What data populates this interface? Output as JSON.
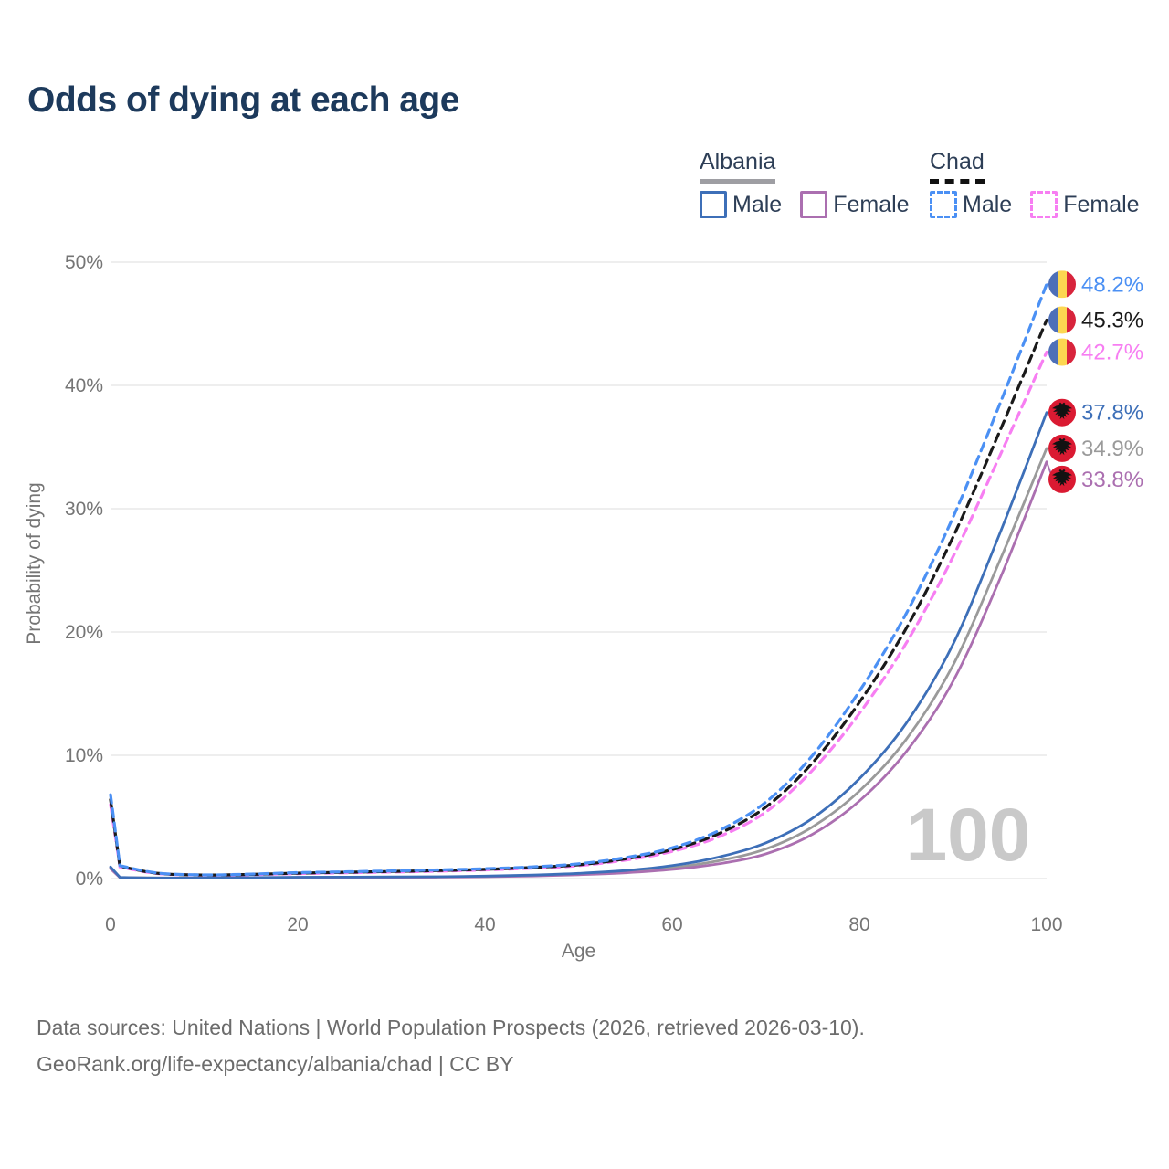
{
  "title": "Odds of dying at each age",
  "legend": {
    "albania": {
      "label": "Albania",
      "male": "Male",
      "female": "Female"
    },
    "chad": {
      "label": "Chad",
      "male": "Male",
      "female": "Female"
    }
  },
  "watermark_age": "100",
  "footer": {
    "line1": "Data sources: United Nations | World Population Prospects (2026, retrieved 2026-03-10).",
    "line2": "GeoRank.org/life-expectancy/albania/chad | CC BY"
  },
  "colors": {
    "title_text": "#1d3a5c",
    "axis_text": "#757575",
    "gridline": "#e8e8e8",
    "watermark": "#c9c9c9",
    "albania_male": "#3d6fb8",
    "albania_all": "#9a9a9a",
    "albania_female": "#ab6fb0",
    "chad_male": "#4b90f4",
    "chad_all": "#1a1a1a",
    "chad_female": "#f77ef2",
    "chad_flag_blue": "#4d6fb8",
    "chad_flag_yellow": "#fcd751",
    "chad_flag_red": "#d8243c",
    "albania_flag_red": "#da1a32",
    "albania_flag_eagle": "#121212"
  },
  "chart_data": {
    "type": "line",
    "title": "Odds of dying at each age",
    "xlabel": "Age",
    "ylabel": "Probability of dying",
    "xlim": [
      0,
      100
    ],
    "ylim_pct": [
      0,
      50
    ],
    "x_ticks": [
      "0",
      "20",
      "40",
      "60",
      "80",
      "100"
    ],
    "y_ticks": [
      "0%",
      "10%",
      "20%",
      "30%",
      "40%",
      "50%"
    ],
    "grid": true,
    "legend_position": "top-right",
    "ages": [
      0,
      1,
      5,
      10,
      15,
      20,
      25,
      30,
      35,
      40,
      45,
      50,
      55,
      60,
      65,
      70,
      75,
      80,
      85,
      90,
      95,
      100
    ],
    "series": [
      {
        "name": "Albania All",
        "country": "Albania",
        "sex": "all",
        "style": "solid",
        "color": "#9a9a9a",
        "flag": "albania",
        "end_label": "34.9%",
        "end_value": 34.9,
        "values": [
          0.88,
          0.09,
          0.05,
          0.05,
          0.07,
          0.09,
          0.1,
          0.11,
          0.13,
          0.17,
          0.24,
          0.36,
          0.55,
          0.88,
          1.45,
          2.4,
          4.2,
          7.1,
          11.3,
          17.3,
          25.8,
          34.9
        ]
      },
      {
        "name": "Albania Female",
        "country": "Albania",
        "sex": "female",
        "style": "solid",
        "color": "#ab6fb0",
        "flag": "albania",
        "end_label": "33.8%",
        "end_value": 33.8,
        "values": [
          0.8,
          0.08,
          0.04,
          0.04,
          0.06,
          0.08,
          0.09,
          0.1,
          0.12,
          0.15,
          0.21,
          0.31,
          0.47,
          0.74,
          1.2,
          2.0,
          3.6,
          6.3,
          10.3,
          16.0,
          24.3,
          33.8
        ]
      },
      {
        "name": "Albania Male",
        "country": "Albania",
        "sex": "male",
        "style": "solid",
        "color": "#3d6fb8",
        "flag": "albania",
        "end_label": "37.8%",
        "end_value": 37.8,
        "values": [
          0.95,
          0.1,
          0.05,
          0.05,
          0.08,
          0.11,
          0.12,
          0.13,
          0.15,
          0.2,
          0.28,
          0.42,
          0.65,
          1.05,
          1.75,
          2.9,
          4.9,
          8.1,
          12.6,
          19.0,
          28.0,
          37.8
        ]
      },
      {
        "name": "Chad Female",
        "country": "Chad",
        "sex": "female",
        "style": "dashed",
        "color": "#f77ef2",
        "flag": "chad",
        "end_label": "42.7%",
        "end_value": 42.7,
        "values": [
          6.0,
          0.95,
          0.41,
          0.28,
          0.32,
          0.4,
          0.47,
          0.53,
          0.6,
          0.7,
          0.84,
          1.05,
          1.5,
          2.2,
          3.4,
          5.4,
          8.8,
          13.4,
          19.1,
          26.1,
          34.3,
          42.7
        ]
      },
      {
        "name": "Chad All",
        "country": "Chad",
        "sex": "all",
        "style": "dashed",
        "color": "#1a1a1a",
        "flag": "chad",
        "end_label": "45.3%",
        "end_value": 45.3,
        "values": [
          6.4,
          1.0,
          0.43,
          0.29,
          0.34,
          0.44,
          0.51,
          0.58,
          0.65,
          0.75,
          0.9,
          1.12,
          1.6,
          2.35,
          3.65,
          5.8,
          9.4,
          14.3,
          20.3,
          27.7,
          36.3,
          45.3
        ]
      },
      {
        "name": "Chad Male",
        "country": "Chad",
        "sex": "male",
        "style": "dashed",
        "color": "#4b90f4",
        "flag": "chad",
        "end_label": "48.2%",
        "end_value": 48.2,
        "values": [
          6.8,
          1.05,
          0.45,
          0.3,
          0.36,
          0.48,
          0.55,
          0.62,
          0.7,
          0.8,
          0.95,
          1.2,
          1.7,
          2.5,
          3.9,
          6.2,
          10.0,
          15.2,
          21.5,
          29.3,
          38.5,
          48.2
        ]
      }
    ]
  }
}
